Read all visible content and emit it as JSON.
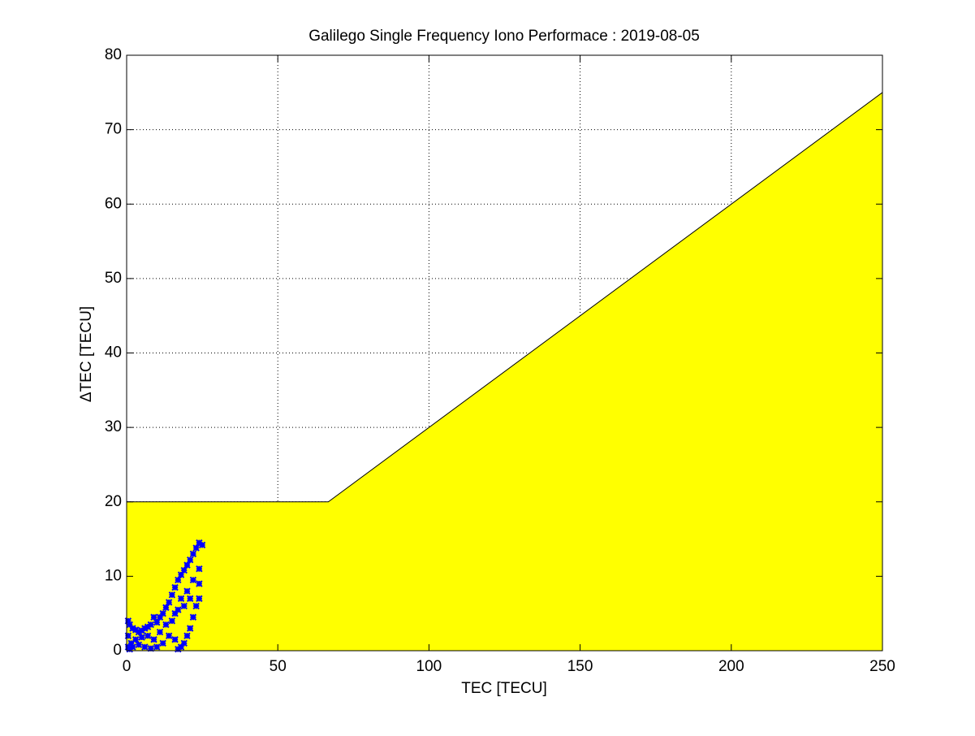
{
  "chart_data": {
    "type": "scatter",
    "title": "Galilego Single Frequency Iono Performace : 2019-08-05",
    "x_label": "TEC [TECU]",
    "y_label": "ΔTEC [TECU]",
    "xlim": [
      0,
      250
    ],
    "ylim": [
      0,
      80
    ],
    "xticks": [
      0,
      50,
      100,
      150,
      200,
      250
    ],
    "yticks": [
      0,
      10,
      20,
      30,
      40,
      50,
      60,
      70,
      80
    ],
    "grid": true,
    "series": [
      {
        "type": "area",
        "color": "#ffff00",
        "x": [
          0,
          66.7,
          250
        ],
        "values": [
          20,
          20,
          75
        ]
      },
      {
        "type": "scatter",
        "color": "#0000ff",
        "x": [
          0.5,
          0.5,
          0.5,
          1,
          1.5,
          2,
          3,
          4,
          5,
          6,
          7,
          8,
          9,
          10,
          11,
          12,
          13,
          14,
          15,
          16,
          17,
          18,
          19,
          20,
          21,
          22,
          23,
          24,
          25,
          24,
          24,
          24,
          23,
          22,
          21,
          20,
          19,
          18,
          17,
          16,
          18,
          20,
          22,
          14,
          12,
          10,
          8,
          6,
          4,
          2,
          3,
          5,
          7,
          9,
          11,
          13,
          15,
          17,
          19,
          21,
          16,
          1
        ],
        "values": [
          4,
          2,
          0.5,
          3.5,
          1,
          3,
          2.8,
          2.5,
          2.7,
          3,
          3.2,
          3.5,
          4.5,
          3.8,
          4.5,
          5,
          5.8,
          6.5,
          7.5,
          8.5,
          9.5,
          10.2,
          10.8,
          11.5,
          12.2,
          13,
          13.8,
          14.5,
          14.2,
          11,
          9,
          7,
          6,
          4.5,
          3,
          2,
          1,
          0.5,
          0.2,
          5,
          7,
          8,
          9.5,
          2,
          1,
          0.5,
          0.3,
          0.5,
          0.8,
          0.5,
          1.5,
          1.8,
          2,
          1.5,
          2.5,
          3.5,
          4,
          5.5,
          6,
          7,
          1.5,
          0.2
        ]
      }
    ]
  }
}
